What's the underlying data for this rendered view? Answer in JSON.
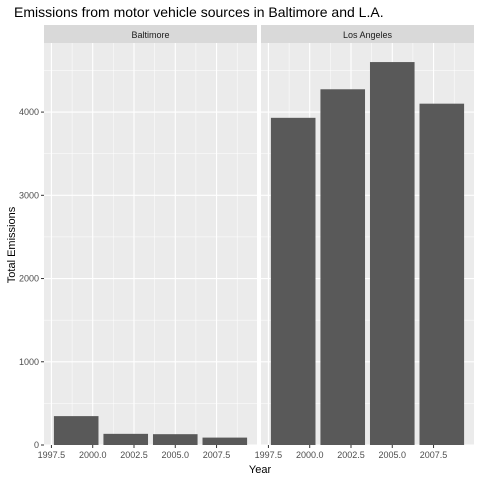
{
  "chart_data": {
    "type": "bar",
    "title": "Emissions from motor vehicle sources in Baltimore and L.A.",
    "xlabel": "Year",
    "ylabel": "Total Emissions",
    "x_ticks": [
      "1997.5",
      "2000.0",
      "2002.5",
      "2005.0",
      "2007.5"
    ],
    "y_ticks": [
      "0",
      "1000",
      "2000",
      "3000",
      "4000"
    ],
    "xlim": [
      1997.05,
      2009.95
    ],
    "ylim": [
      0,
      4830
    ],
    "grid": true,
    "facets": [
      {
        "name": "Baltimore",
        "x": [
          1999,
          2002,
          2005,
          2008
        ],
        "values": [
          347,
          134,
          130,
          89
        ]
      },
      {
        "name": "Los Angeles",
        "x": [
          1999,
          2002,
          2005,
          2008
        ],
        "values": [
          3931,
          4274,
          4601,
          4101
        ]
      }
    ],
    "colors": {
      "bar": "#595959",
      "panel_bg": "#ebebeb",
      "strip_bg": "#d9d9d9",
      "grid": "#ffffff",
      "tick": "#333333"
    }
  }
}
